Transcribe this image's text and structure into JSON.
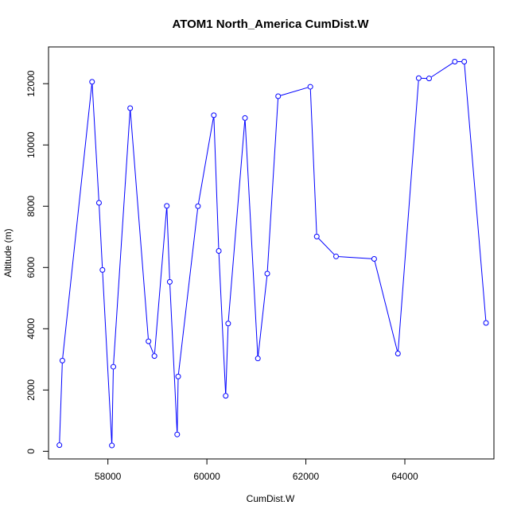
{
  "chart_data": {
    "type": "line",
    "title": "ATOM1 North_America CumDist.W",
    "xlabel": "CumDist.W",
    "ylabel": "Altitude (m)",
    "xlim": [
      56800,
      65800
    ],
    "ylim": [
      -250,
      13200
    ],
    "x_ticks": [
      58000,
      60000,
      62000,
      64000
    ],
    "y_ticks": [
      0,
      2000,
      4000,
      6000,
      8000,
      10000,
      12000
    ],
    "grid": false,
    "line_color": "#0000ff",
    "marker": "open-circle",
    "series": [
      {
        "x": [
          57020,
          57080,
          57680,
          57820,
          57890,
          58080,
          58110,
          58450,
          58820,
          58940,
          59190,
          59250,
          59400,
          59420,
          59820,
          60140,
          60240,
          60380,
          60430,
          60770,
          61030,
          61220,
          61440,
          62090,
          62220,
          62610,
          63380,
          63860,
          64280,
          64490,
          65010,
          65200,
          65640
        ],
        "y": [
          200,
          2960,
          12060,
          8110,
          5920,
          190,
          2760,
          11200,
          3590,
          3110,
          8010,
          5530,
          550,
          2440,
          8000,
          10970,
          6540,
          1810,
          4170,
          10880,
          3030,
          5800,
          11590,
          11900,
          7010,
          6360,
          6280,
          3190,
          12180,
          12170,
          12720,
          12720,
          4190
        ]
      }
    ]
  }
}
